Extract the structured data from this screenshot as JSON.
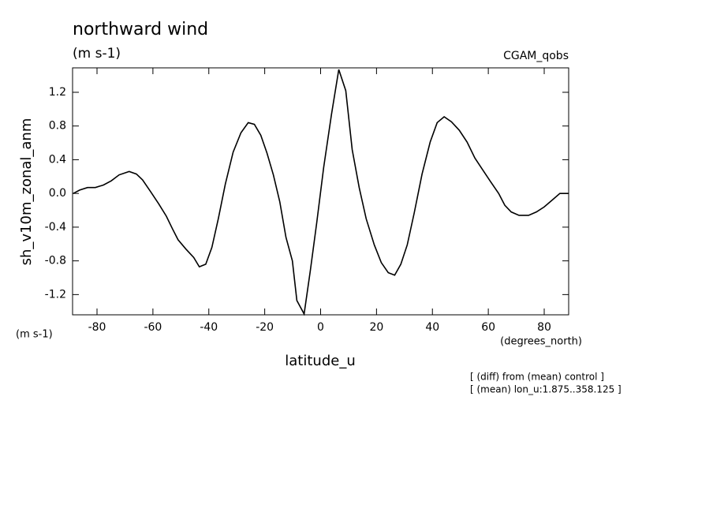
{
  "chart_data": {
    "type": "line",
    "title": "northward wind",
    "subtitle": "(m s-1)",
    "source": "CGAM_qobs",
    "ylabel": "sh_v10m_zonal_anm",
    "yunits": "(m s-1)",
    "xlabel": "latitude_u",
    "xunits": "(degrees_north)",
    "notes": [
      "[ (diff) from (mean) control ]",
      "[ (mean) lon_u:1.875..358.125 ]"
    ],
    "color": "#000000",
    "xlim": [
      -88.75,
      88.75
    ],
    "ylim": [
      -1.44,
      1.49
    ],
    "xticks": [
      -80,
      -60,
      -40,
      -20,
      0,
      20,
      40,
      60,
      80
    ],
    "yticks": [
      -1.2,
      -0.8,
      -0.4,
      {
        "value": 0,
        "label": "0.0"
      },
      0.4,
      0.8,
      1.2
    ],
    "x": [
      -88.5,
      -86.2,
      -83.4,
      -80.6,
      -77.7,
      -74.9,
      -72.1,
      -68.5,
      -65.9,
      -63.7,
      -60.8,
      -58.0,
      -55.2,
      -53.0,
      -51.0,
      -48.2,
      -45.4,
      -43.4,
      -41.1,
      -38.9,
      -36.6,
      -34.1,
      -31.3,
      -28.5,
      -25.9,
      -23.7,
      -21.4,
      -19.2,
      -16.9,
      -14.6,
      -12.4,
      -10.1,
      -8.5,
      -5.9,
      -3.7,
      -1.4,
      1.1,
      3.9,
      6.5,
      9.0,
      11.3,
      13.8,
      16.3,
      19.2,
      21.7,
      24.2,
      26.5,
      28.7,
      31.0,
      33.5,
      36.3,
      39.2,
      41.7,
      44.2,
      46.8,
      49.6,
      52.4,
      55.2,
      58.0,
      60.8,
      63.7,
      65.9,
      68.2,
      71.0,
      74.4,
      77.2,
      80.0,
      82.8,
      85.6,
      88.7
    ],
    "values": [
      0.0,
      0.04,
      0.07,
      0.07,
      0.1,
      0.15,
      0.22,
      0.26,
      0.23,
      0.16,
      0.02,
      -0.12,
      -0.27,
      -0.42,
      -0.55,
      -0.66,
      -0.76,
      -0.87,
      -0.84,
      -0.64,
      -0.3,
      0.11,
      0.49,
      0.72,
      0.84,
      0.82,
      0.69,
      0.48,
      0.22,
      -0.1,
      -0.52,
      -0.8,
      -1.27,
      -1.43,
      -0.92,
      -0.35,
      0.31,
      0.94,
      1.47,
      1.22,
      0.52,
      0.07,
      -0.3,
      -0.61,
      -0.82,
      -0.94,
      -0.97,
      -0.84,
      -0.61,
      -0.23,
      0.23,
      0.61,
      0.84,
      0.91,
      0.85,
      0.75,
      0.61,
      0.42,
      0.28,
      0.14,
      0.0,
      -0.14,
      -0.22,
      -0.26,
      -0.26,
      -0.22,
      -0.16,
      -0.08,
      0.0,
      0.0
    ]
  }
}
